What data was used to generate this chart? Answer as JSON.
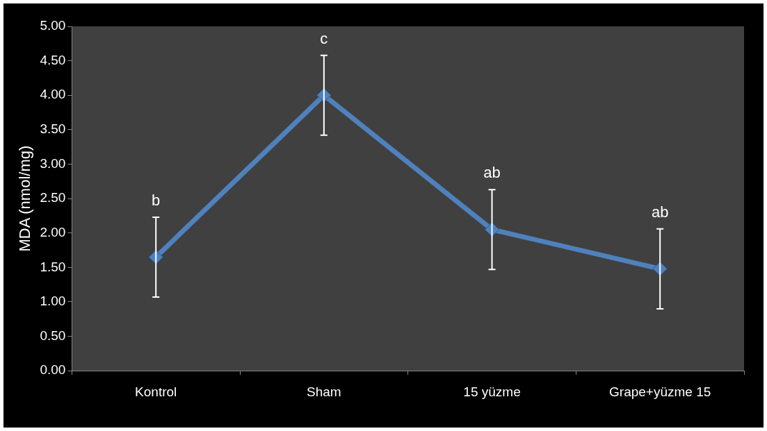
{
  "chart_data": {
    "type": "line",
    "ylabel": "MDA (nmol/mg)",
    "categories": [
      "Kontrol",
      "Sham",
      "15 yüzme",
      "Grape+yüzme 15"
    ],
    "series": [
      {
        "color": "#4f81bd",
        "values": [
          1.65,
          4.0,
          2.05,
          1.48
        ],
        "errors": [
          0.58,
          0.58,
          0.58,
          0.58
        ]
      }
    ],
    "ylim": [
      0,
      5
    ],
    "yticks": [
      {
        "value": 0,
        "label": "0.00"
      },
      {
        "value": 0.5,
        "label": "0.50"
      },
      {
        "value": 1,
        "label": "1.00"
      },
      {
        "value": 1.5,
        "label": "1.50"
      },
      {
        "value": 2,
        "label": "2.00"
      },
      {
        "value": 2.5,
        "label": "2.50"
      },
      {
        "value": 3,
        "label": "3.00"
      },
      {
        "value": 3.5,
        "label": "3.50"
      },
      {
        "value": 4,
        "label": "4.00"
      },
      {
        "value": 4.5,
        "label": "4.50"
      },
      {
        "value": 5,
        "label": "5.00"
      }
    ],
    "annotations": [
      "b",
      "c",
      "ab",
      "ab"
    ],
    "marker": "diamond",
    "line_style": "solid",
    "grid": false,
    "legend": false
  }
}
